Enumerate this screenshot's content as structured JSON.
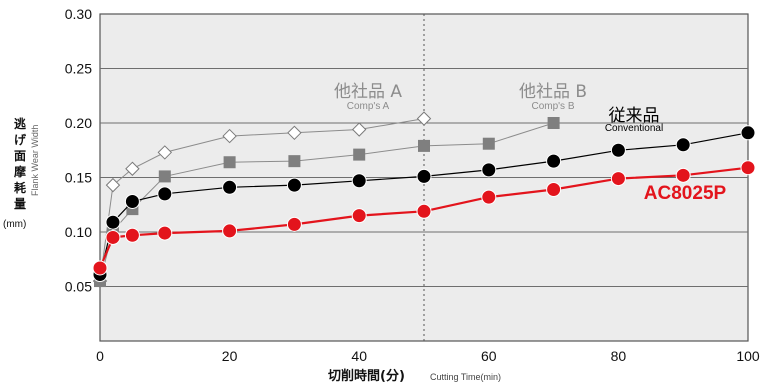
{
  "chart_data": {
    "type": "line",
    "xlabel": "切削時間(分)",
    "xlabel_en": "Cutting Time(min)",
    "ylabel": "逃げ面摩耗量",
    "ylabel_en": "Flank Wear Width",
    "ylabel_unit": "(mm)",
    "xlim": [
      0,
      100
    ],
    "ylim": [
      0,
      0.3
    ],
    "x_ticks": [
      0,
      20,
      40,
      60,
      80,
      100
    ],
    "y_ticks": [
      "0.05",
      "0.10",
      "0.15",
      "0.20",
      "0.25",
      "0.30"
    ],
    "y_tick_values": [
      0.05,
      0.1,
      0.15,
      0.2,
      0.25,
      0.3
    ],
    "grid": "horizontal",
    "reference_line_x": 50,
    "series": [
      {
        "name": "他社品 A",
        "sub": "Comp's A",
        "marker": "diamond",
        "color": "#8c8c8c",
        "x": [
          0,
          2,
          5,
          10,
          20,
          30,
          40,
          50
        ],
        "y": [
          0.055,
          0.143,
          0.158,
          0.173,
          0.188,
          0.191,
          0.194,
          0.204
        ]
      },
      {
        "name": "他社品 B",
        "sub": "Comp's B",
        "marker": "square",
        "color": "#8c8c8c",
        "x": [
          0,
          2,
          5,
          10,
          20,
          30,
          40,
          50,
          60,
          70
        ],
        "y": [
          0.055,
          0.101,
          0.121,
          0.151,
          0.164,
          0.165,
          0.171,
          0.179,
          0.181,
          0.2
        ]
      },
      {
        "name": "従来品",
        "sub": "Conventional",
        "marker": "circle",
        "color": "#000000",
        "x": [
          0,
          2,
          5,
          10,
          20,
          30,
          40,
          50,
          60,
          70,
          80,
          90,
          100
        ],
        "y": [
          0.061,
          0.109,
          0.128,
          0.135,
          0.141,
          0.143,
          0.147,
          0.151,
          0.157,
          0.165,
          0.175,
          0.18,
          0.191
        ]
      },
      {
        "name": "AC8025P",
        "sub": "",
        "marker": "circle",
        "color": "#e3141c",
        "x": [
          0,
          2,
          5,
          10,
          20,
          30,
          40,
          50,
          60,
          70,
          80,
          90,
          100
        ],
        "y": [
          0.067,
          0.095,
          0.097,
          0.099,
          0.101,
          0.107,
          0.115,
          0.119,
          0.132,
          0.139,
          0.149,
          0.152,
          0.159
        ]
      }
    ]
  }
}
